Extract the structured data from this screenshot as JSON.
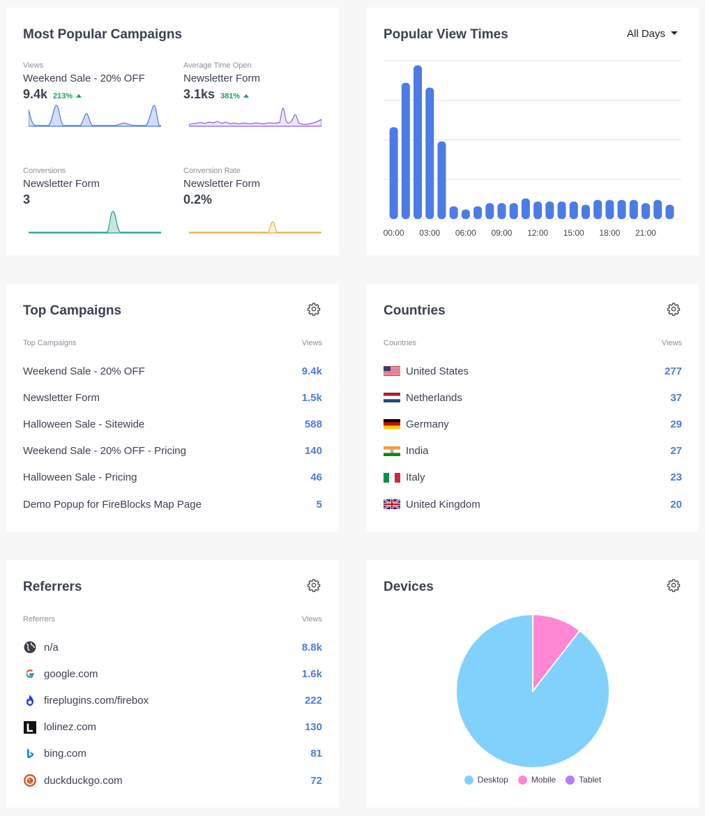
{
  "popular_campaigns": {
    "title": "Most Popular Campaigns",
    "metrics": [
      {
        "label": "Views",
        "name": "Weekend Sale - 20% OFF",
        "value": "9.4k",
        "change": "213%"
      },
      {
        "label": "Average Time Open",
        "name": "Newsletter Form",
        "value": "3.1ks",
        "change": "381%"
      },
      {
        "label": "Conversions",
        "name": "Newsletter Form",
        "value": "3",
        "change": ""
      },
      {
        "label": "Conversion Rate",
        "name": "Newsletter Form",
        "value": "0.2%",
        "change": ""
      }
    ],
    "spark_colors": [
      "#4b7be5",
      "#8b5cf6",
      "#1f9e8f",
      "#e8b04a"
    ]
  },
  "view_times": {
    "title": "Popular View Times",
    "dropdown": "All Days",
    "chart_data": {
      "type": "bar",
      "categories": [
        "00:00",
        "01:00",
        "02:00",
        "03:00",
        "04:00",
        "05:00",
        "06:00",
        "07:00",
        "08:00",
        "09:00",
        "10:00",
        "11:00",
        "12:00",
        "13:00",
        "14:00",
        "15:00",
        "16:00",
        "17:00",
        "18:00",
        "19:00",
        "20:00",
        "21:00",
        "22:00",
        "23:00"
      ],
      "tick_labels": [
        "00:00",
        "03:00",
        "06:00",
        "09:00",
        "12:00",
        "15:00",
        "18:00",
        "21:00"
      ],
      "values": [
        58,
        86,
        97,
        83,
        49,
        8,
        6,
        8,
        10,
        10,
        10,
        13,
        11,
        11,
        11,
        11,
        9,
        12,
        12,
        12,
        12,
        10,
        12,
        9
      ],
      "ylim": [
        0,
        100
      ],
      "color": "#4b7be5",
      "grid": true
    }
  },
  "top_campaigns": {
    "title": "Top Campaigns",
    "col_left": "Top Campaigns",
    "col_right": "Views",
    "rows": [
      {
        "name": "Weekend Sale - 20% OFF",
        "views": "9.4k"
      },
      {
        "name": "Newsletter Form",
        "views": "1.5k"
      },
      {
        "name": "Halloween Sale - Sitewide",
        "views": "588"
      },
      {
        "name": "Weekend Sale - 20% OFF - Pricing",
        "views": "140"
      },
      {
        "name": "Halloween Sale - Pricing",
        "views": "46"
      },
      {
        "name": "Demo Popup for FireBlocks Map Page",
        "views": "5"
      }
    ]
  },
  "countries": {
    "title": "Countries",
    "col_left": "Countries",
    "col_right": "Views",
    "rows": [
      {
        "name": "United States",
        "views": "277",
        "flag": "us-flag-icon"
      },
      {
        "name": "Netherlands",
        "views": "37",
        "flag": "nl-flag-icon"
      },
      {
        "name": "Germany",
        "views": "29",
        "flag": "de-flag-icon"
      },
      {
        "name": "India",
        "views": "27",
        "flag": "in-flag-icon"
      },
      {
        "name": "Italy",
        "views": "23",
        "flag": "it-flag-icon"
      },
      {
        "name": "United Kingdom",
        "views": "20",
        "flag": "gb-flag-icon"
      }
    ]
  },
  "referrers": {
    "title": "Referrers",
    "col_left": "Referrers",
    "col_right": "Views",
    "rows": [
      {
        "name": "n/a",
        "views": "8.8k",
        "icon": "globe-icon"
      },
      {
        "name": "google.com",
        "views": "1.6k",
        "icon": "google-icon"
      },
      {
        "name": "fireplugins.com/firebox",
        "views": "222",
        "icon": "fireplugins-icon"
      },
      {
        "name": "lolinez.com",
        "views": "130",
        "icon": "lolinez-icon"
      },
      {
        "name": "bing.com",
        "views": "81",
        "icon": "bing-icon"
      },
      {
        "name": "duckduckgo.com",
        "views": "72",
        "icon": "duckduckgo-icon"
      }
    ]
  },
  "devices": {
    "title": "Devices",
    "chart_data": {
      "type": "pie",
      "categories": [
        "Desktop",
        "Mobile",
        "Tablet"
      ],
      "values": [
        89.5,
        10.5,
        0
      ],
      "colors": [
        "#81d1fd",
        "#fe88d3",
        "#b77cf0"
      ],
      "legend": "bottom"
    }
  }
}
